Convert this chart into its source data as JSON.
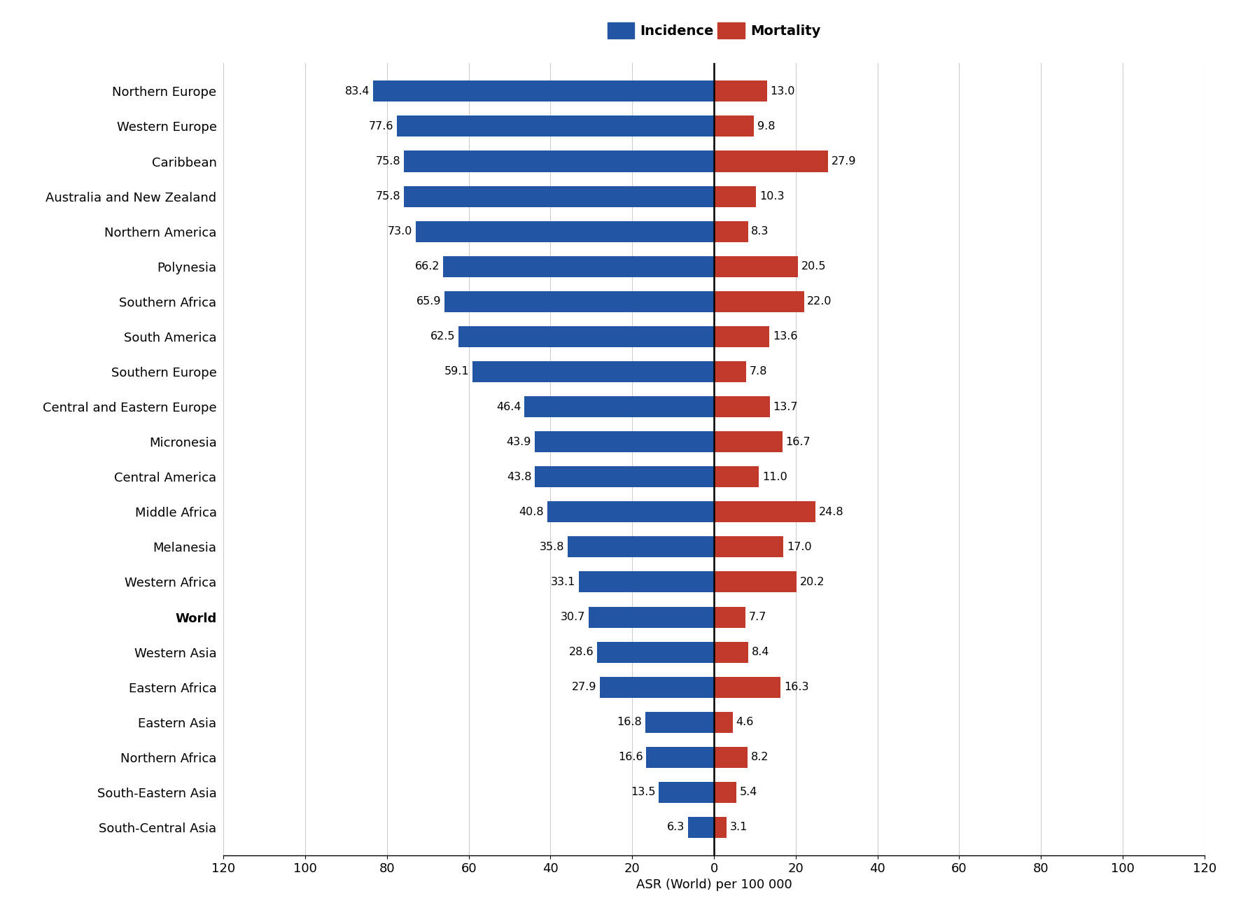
{
  "regions": [
    "Northern Europe",
    "Western Europe",
    "Caribbean",
    "Australia and New Zealand",
    "Northern America",
    "Polynesia",
    "Southern Africa",
    "South America",
    "Southern Europe",
    "Central and Eastern Europe",
    "Micronesia",
    "Central America",
    "Middle Africa",
    "Melanesia",
    "Western Africa",
    "World",
    "Western Asia",
    "Eastern Africa",
    "Eastern Asia",
    "Northern Africa",
    "South-Eastern Asia",
    "South-Central Asia"
  ],
  "incidence": [
    83.4,
    77.6,
    75.8,
    75.8,
    73.0,
    66.2,
    65.9,
    62.5,
    59.1,
    46.4,
    43.9,
    43.8,
    40.8,
    35.8,
    33.1,
    30.7,
    28.6,
    27.9,
    16.8,
    16.6,
    13.5,
    6.3
  ],
  "mortality": [
    13.0,
    9.8,
    27.9,
    10.3,
    8.3,
    20.5,
    22.0,
    13.6,
    7.8,
    13.7,
    16.7,
    11.0,
    24.8,
    17.0,
    20.2,
    7.7,
    8.4,
    16.3,
    4.6,
    8.2,
    5.4,
    3.1
  ],
  "bold_region": "World",
  "incidence_color": "#2255A4",
  "mortality_color": "#C0392B",
  "bar_height": 0.6,
  "xlim": 120,
  "xlabel": "ASR (World) per 100 000",
  "legend_incidence": "Incidence",
  "legend_mortality": "Mortality",
  "background_color": "#FFFFFF",
  "grid_color": "#CCCCCC",
  "label_fontsize": 13,
  "tick_fontsize": 13,
  "value_fontsize": 11.5,
  "legend_fontsize": 14
}
